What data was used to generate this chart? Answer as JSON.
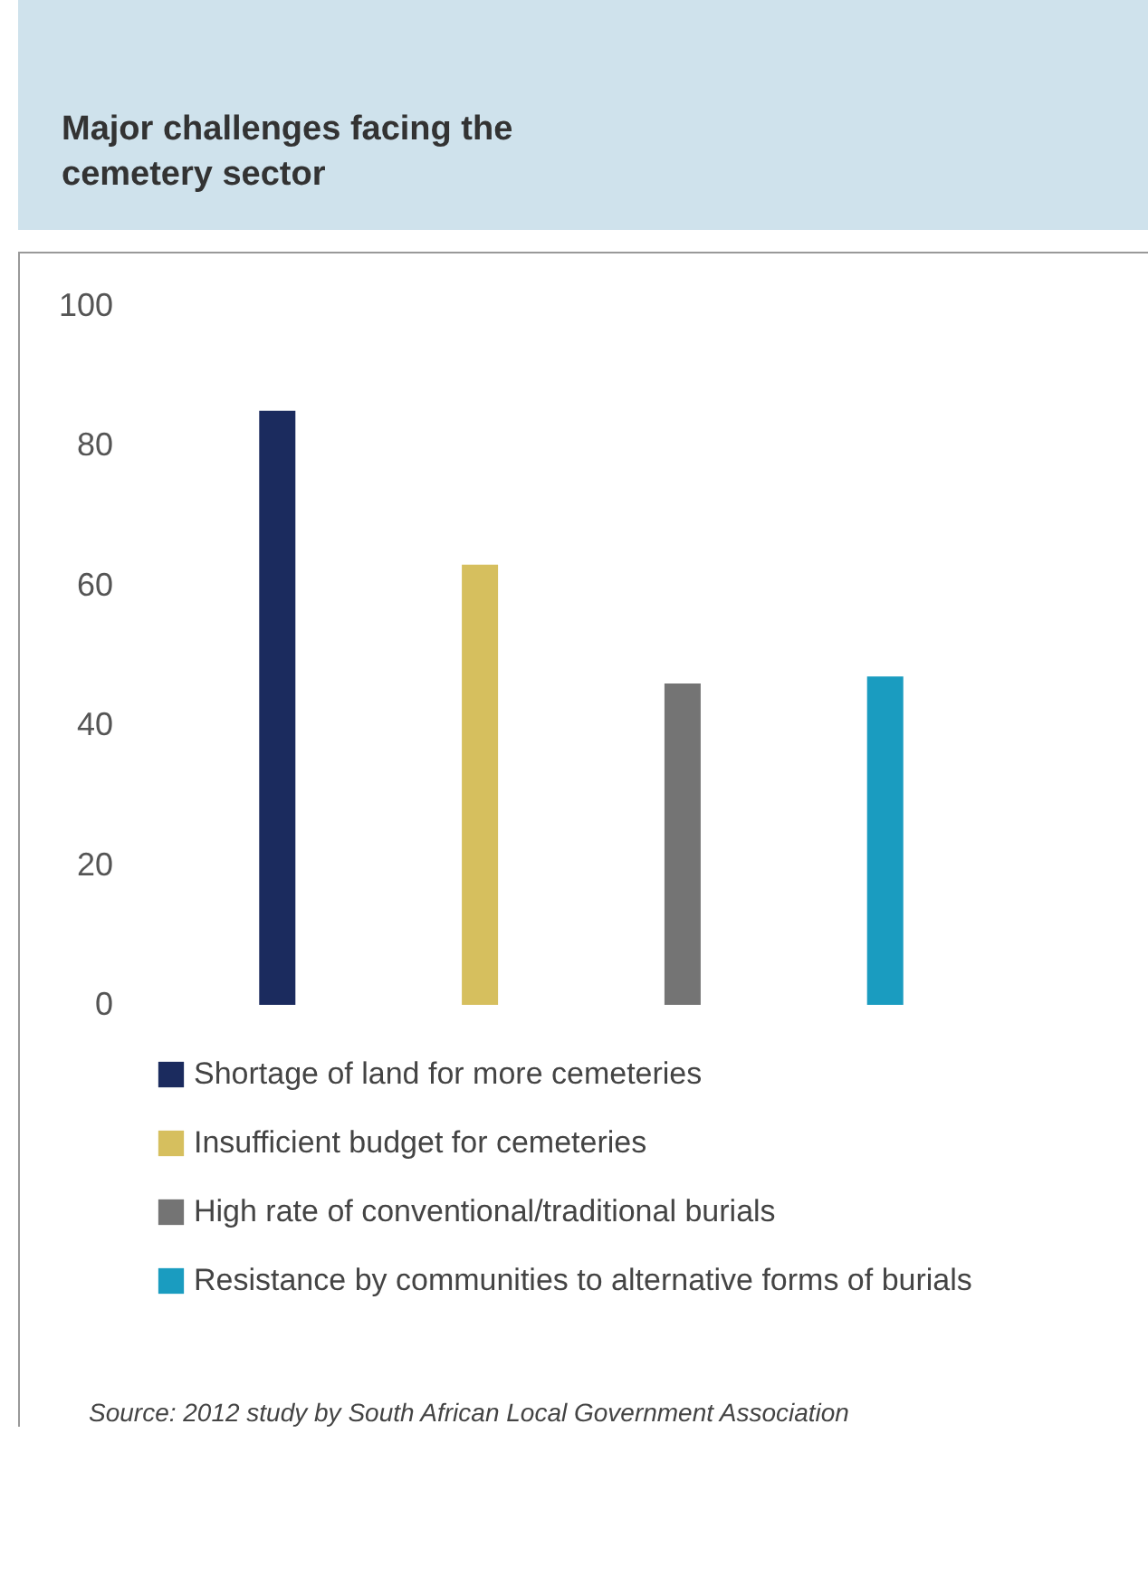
{
  "chart_data": {
    "type": "bar",
    "title": "Major challenges facing the cemetery sector",
    "categories": [
      null,
      null,
      null,
      null
    ],
    "stacked": true,
    "series": [
      {
        "name": "Shortage of land for more cemeteries",
        "color": "#1b2b5e",
        "values": [
          85,
          0,
          0,
          0
        ]
      },
      {
        "name": "Insufficient budget for cemeteries",
        "color": "#d6bf5e",
        "values": [
          0,
          63,
          0,
          0
        ]
      },
      {
        "name": "High rate of conventional/traditional burials",
        "color": "#747474",
        "values": [
          0,
          0,
          46,
          0
        ]
      },
      {
        "name": "Resistance by communities to alternative forms of burials",
        "color": "#1a9cc0",
        "values": [
          0,
          0,
          0,
          47
        ]
      }
    ],
    "ylim": [
      0,
      100
    ],
    "yticks": [
      0,
      20,
      40,
      60,
      80,
      100
    ],
    "tick_labels": "y",
    "legend": "bottom",
    "annotations": [
      "Source: 2012 study by South African Local Government Association"
    ]
  }
}
